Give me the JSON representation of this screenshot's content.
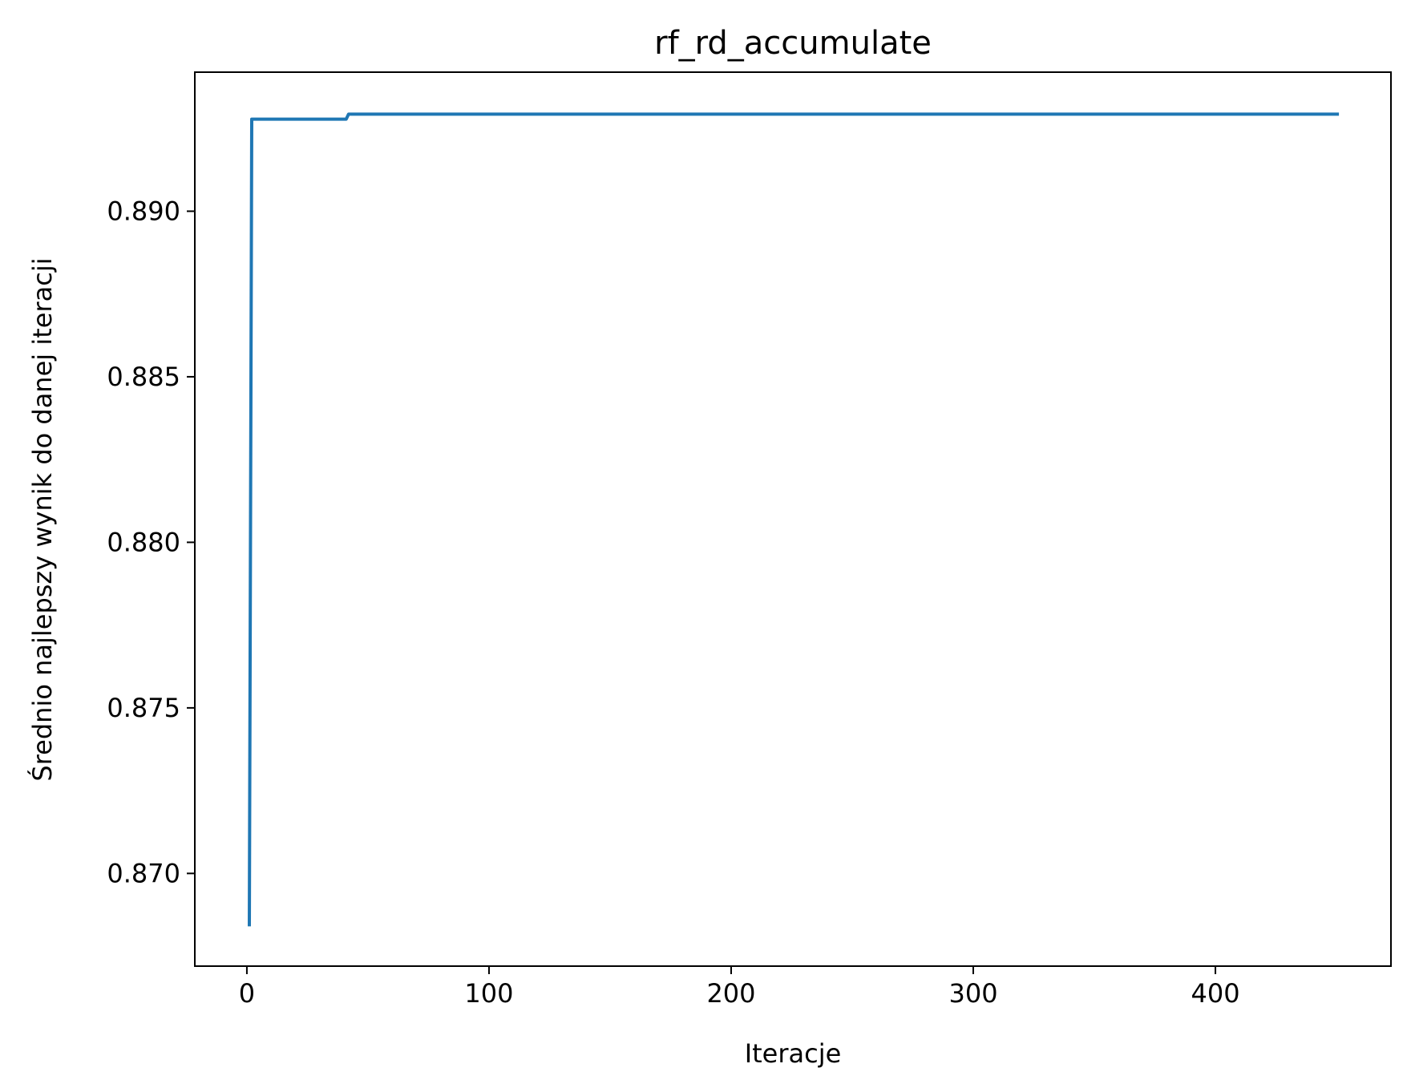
{
  "chart_data": {
    "type": "line",
    "title": "rf_rd_accumulate",
    "xlabel": "Iteracje",
    "ylabel": "Średnio najlepszy wynik do danej iteracji",
    "xlim": [
      -21.5,
      472.5
    ],
    "ylim": [
      0.8672,
      0.8942
    ],
    "xticks": [
      0,
      100,
      200,
      300,
      400
    ],
    "xtick_labels": [
      "0",
      "100",
      "200",
      "300",
      "400"
    ],
    "yticks": [
      0.87,
      0.875,
      0.88,
      0.885,
      0.89
    ],
    "ytick_labels": [
      "0.870",
      "0.875",
      "0.880",
      "0.885",
      "0.890"
    ],
    "grid": false,
    "legend": "none",
    "series": [
      {
        "color": "#1f77b4",
        "x": [
          1,
          2,
          41,
          42,
          451
        ],
        "y": [
          0.8684,
          0.89278,
          0.89278,
          0.89293,
          0.89293
        ]
      }
    ]
  }
}
